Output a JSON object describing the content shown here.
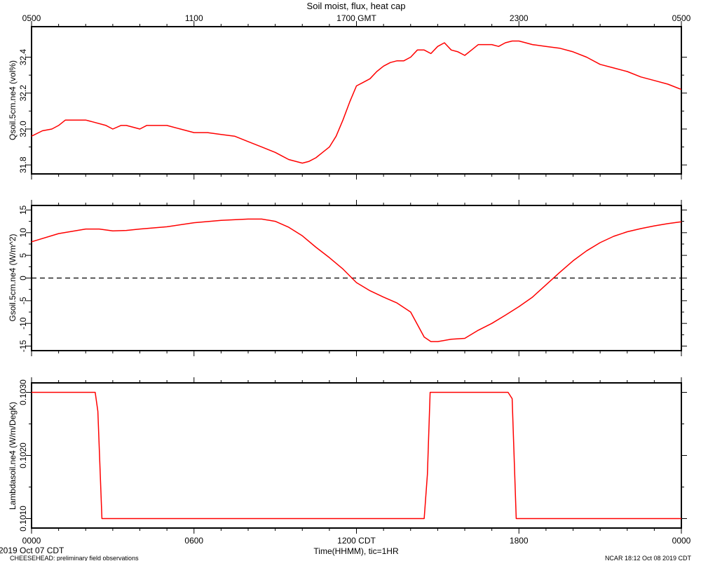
{
  "title": "Soil moist, flux, heat cap",
  "top_axis_ticks": [
    "0500",
    "1100",
    "1700 GMT",
    "2300",
    "0500"
  ],
  "bottom_axis_ticks": [
    "0000",
    "0600",
    "1200 CDT",
    "1800",
    "0000"
  ],
  "xlabel": "Time(HHMM), tic=1HR",
  "footer": {
    "date": "2019 Oct 07 CDT",
    "project": "CHEESEHEAD: preliminary field observations",
    "stamp": "NCAR 18:12 Oct 08 2019 CDT"
  },
  "colors": {
    "series": "#ff0000",
    "axes": "#000000",
    "zero_line": "#000000"
  },
  "chart_data": [
    {
      "type": "line",
      "ylabel": "Qsoil.5cm.ne4 (vol%)",
      "ylim": [
        31.75,
        32.57
      ],
      "yticks": [
        31.8,
        32.0,
        32.2,
        32.4
      ],
      "ytick_labels": [
        "31.8",
        "32.0",
        "32.2",
        "32.4"
      ],
      "xlim": [
        0,
        24
      ],
      "x_unit": "hours since 0000 CDT",
      "x": [
        0,
        0.4,
        0.75,
        1.0,
        1.25,
        1.5,
        2.0,
        2.25,
        2.75,
        3.0,
        3.3,
        3.5,
        3.75,
        4.0,
        4.25,
        4.5,
        4.75,
        5.0,
        5.5,
        6.0,
        6.25,
        6.5,
        7.0,
        7.5,
        8.0,
        8.5,
        9.0,
        9.25,
        9.5,
        10.0,
        10.25,
        10.5,
        10.75,
        11.0,
        11.25,
        11.5,
        11.75,
        12.0,
        12.25,
        12.5,
        12.75,
        13.0,
        13.25,
        13.5,
        13.75,
        14.0,
        14.25,
        14.5,
        14.75,
        15.0,
        15.25,
        15.5,
        15.75,
        16.0,
        16.25,
        16.5,
        16.75,
        17.0,
        17.25,
        17.5,
        17.75,
        18.0,
        18.25,
        18.5,
        19.0,
        19.5,
        20.0,
        20.5,
        21.0,
        21.5,
        22.0,
        22.5,
        23.0,
        23.5,
        24.0
      ],
      "values": [
        31.96,
        31.99,
        32.0,
        32.02,
        32.05,
        32.05,
        32.05,
        32.04,
        32.02,
        32.0,
        32.02,
        32.02,
        32.01,
        32.0,
        32.02,
        32.02,
        32.02,
        32.02,
        32.0,
        31.98,
        31.98,
        31.98,
        31.97,
        31.96,
        31.93,
        31.9,
        31.87,
        31.85,
        31.83,
        31.81,
        31.82,
        31.84,
        31.87,
        31.9,
        31.96,
        32.05,
        32.15,
        32.24,
        32.26,
        32.28,
        32.32,
        32.35,
        32.37,
        32.38,
        32.38,
        32.4,
        32.44,
        32.44,
        32.42,
        32.46,
        32.48,
        32.44,
        32.43,
        32.41,
        32.44,
        32.47,
        32.47,
        32.47,
        32.46,
        32.48,
        32.49,
        32.49,
        32.48,
        32.47,
        32.46,
        32.45,
        32.43,
        32.4,
        32.36,
        32.34,
        32.32,
        32.29,
        32.27,
        32.25,
        32.22
      ]
    },
    {
      "type": "line",
      "ylabel": "Gsoil.5cm.ne4 (W/m^2)",
      "ylim": [
        -16,
        16
      ],
      "yticks": [
        -15,
        -10,
        -5,
        0,
        5,
        10,
        15
      ],
      "ytick_labels": [
        "-15",
        "-10",
        "-5",
        "0",
        "5",
        "10",
        "15"
      ],
      "zero_line": true,
      "xlim": [
        0,
        24
      ],
      "x_unit": "hours since 0000 CDT",
      "x": [
        0,
        1,
        2,
        2.5,
        3.0,
        3.5,
        4.0,
        5.0,
        6.0,
        7.0,
        8.0,
        8.5,
        9.0,
        9.5,
        10.0,
        10.5,
        11.0,
        11.5,
        12.0,
        12.5,
        13.0,
        13.5,
        14.0,
        14.5,
        14.75,
        15.0,
        15.5,
        16.0,
        16.5,
        17.0,
        17.5,
        18.0,
        18.5,
        19.0,
        19.5,
        20.0,
        20.5,
        21.0,
        21.5,
        22.0,
        22.5,
        23.0,
        23.5,
        24.0
      ],
      "values": [
        8.0,
        9.8,
        10.8,
        10.8,
        10.4,
        10.5,
        10.8,
        11.3,
        12.2,
        12.7,
        13.0,
        13.0,
        12.5,
        11.2,
        9.3,
        6.8,
        4.5,
        2.0,
        -1.0,
        -2.8,
        -4.2,
        -5.5,
        -7.5,
        -13.0,
        -14.0,
        -14.0,
        -13.5,
        -13.3,
        -11.5,
        -10.0,
        -8.2,
        -6.3,
        -4.2,
        -1.5,
        1.2,
        3.8,
        6.0,
        7.8,
        9.2,
        10.2,
        10.9,
        11.5,
        12.0,
        12.4
      ]
    },
    {
      "type": "line",
      "ylabel": "Lambdasoil.ne4 (W/m/DegK)",
      "ylim": [
        0.10085,
        0.10315
      ],
      "yticks": [
        0.101,
        0.102,
        0.103
      ],
      "ytick_labels": [
        "0.1010",
        "0.1020",
        "0.1030"
      ],
      "xlim": [
        0,
        24
      ],
      "x_unit": "hours since 0000 CDT",
      "x": [
        0,
        2.35,
        2.45,
        2.6,
        14.5,
        14.62,
        14.72,
        17.6,
        17.75,
        17.9,
        24
      ],
      "values": [
        0.103,
        0.103,
        0.1027,
        0.101,
        0.101,
        0.1017,
        0.103,
        0.103,
        0.1029,
        0.101,
        0.101
      ]
    }
  ]
}
